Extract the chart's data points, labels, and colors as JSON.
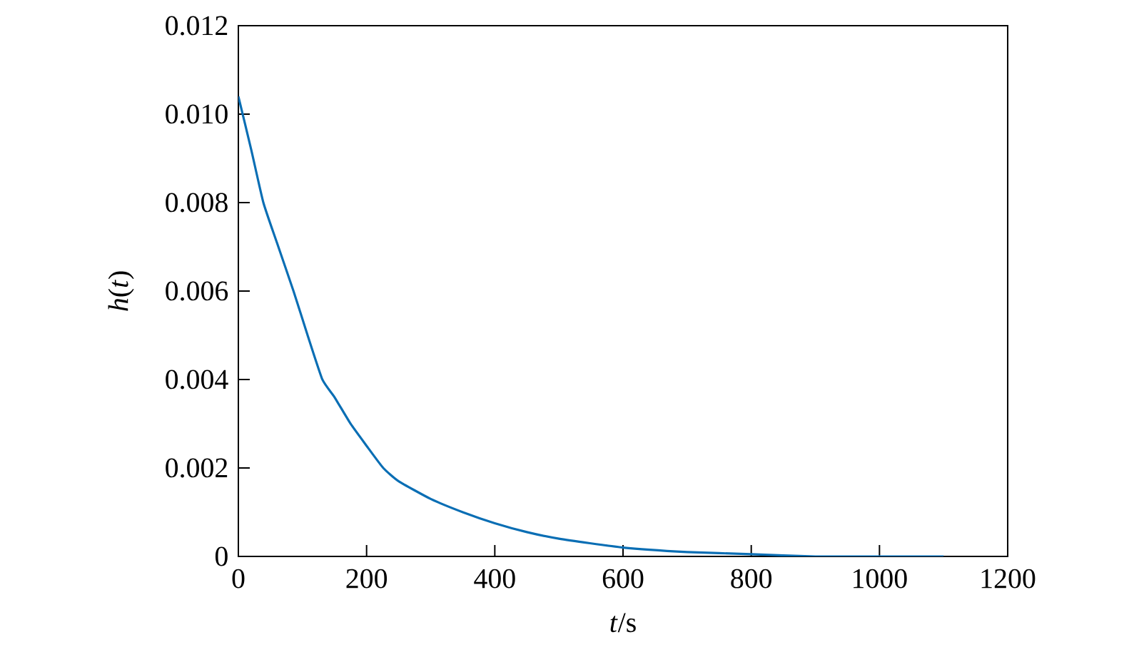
{
  "chart_data": {
    "type": "line",
    "xlabel": "*t*/s",
    "ylabel": "*h*(*t*)",
    "x": [
      0,
      20,
      39,
      60,
      86,
      108,
      131,
      150,
      175,
      200,
      226,
      250,
      300,
      350,
      400,
      450,
      500,
      600,
      700,
      800,
      900,
      1000,
      1100
    ],
    "series": [
      {
        "color": "#0a6eb4",
        "values": [
          0.0104,
          0.0092,
          0.008,
          0.0071,
          0.006,
          0.005,
          0.004,
          0.0036,
          0.003,
          0.0025,
          0.002,
          0.0017,
          0.0013,
          0.001,
          0.00075,
          0.00055,
          0.0004,
          0.0002,
          0.0001,
          5e-05,
          0,
          0,
          0
        ]
      }
    ],
    "xlim": [
      0,
      1200
    ],
    "ylim": [
      0,
      0.012
    ],
    "xticks": [
      0,
      200,
      400,
      600,
      800,
      1000,
      1200
    ],
    "yticks": [
      0,
      0.002,
      0.004,
      0.006,
      0.008,
      {
        "value": 0.01,
        "label": "0.010"
      },
      0.012
    ],
    "grid": false,
    "marker": "none",
    "line_style": "solid"
  }
}
